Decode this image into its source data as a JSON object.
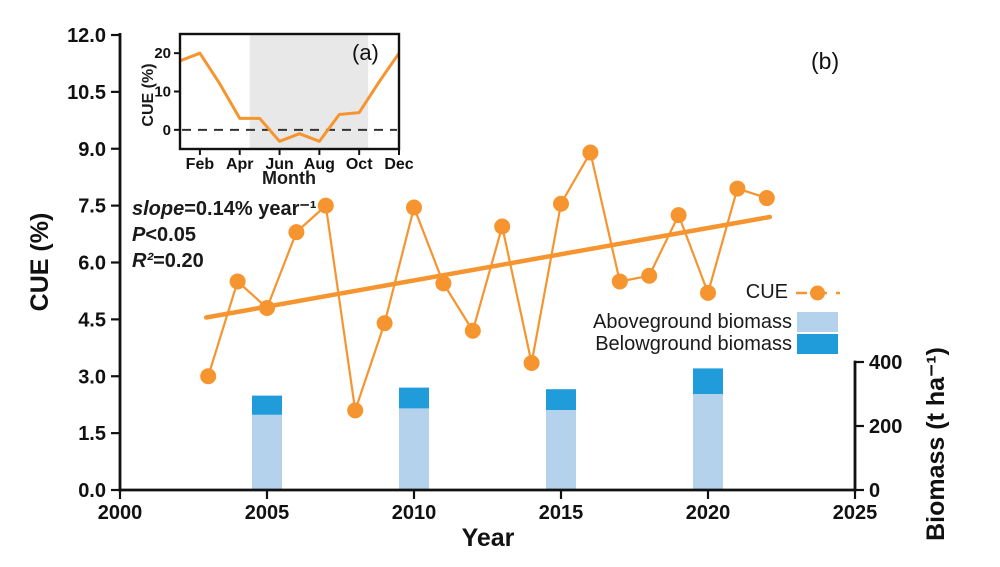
{
  "colors": {
    "orange": "#F6952F",
    "light_blue": "#B4D2EC",
    "dark_blue": "#219CDB",
    "band_gray": "#E8E8E8",
    "axis_black": "#111111"
  },
  "chart_data": [
    {
      "id": "inset-a",
      "type": "line",
      "title": "(a)",
      "xlabel": "Month",
      "ylabel": "CUE (%)",
      "x": [
        1,
        2,
        3,
        4,
        5,
        6,
        7,
        8,
        9,
        10,
        11,
        12
      ],
      "values": [
        18,
        20,
        12,
        3,
        3,
        -3,
        -1,
        -3,
        4,
        4.5,
        12.5,
        20
      ],
      "xlim": [
        1,
        12
      ],
      "ylim": [
        -5,
        25
      ],
      "yticks": [
        0,
        10,
        20
      ],
      "xticks": [
        2,
        4,
        6,
        8,
        10,
        12
      ],
      "xticklabels": [
        "Feb",
        "Apr",
        "Jun",
        "Aug",
        "Oct",
        "Dec"
      ],
      "shaded_month_range": [
        4.5,
        10.45
      ],
      "zero_line_dashed": true,
      "grid": false
    },
    {
      "id": "main-b",
      "type": "line+bar",
      "title": "(b)",
      "xlabel": "Year",
      "ylabel_left": "CUE (%)",
      "ylabel_right": "Biomass (t ha⁻¹)",
      "xlim": [
        2000,
        2025
      ],
      "xticks": [
        2000,
        2005,
        2010,
        2015,
        2020,
        2025
      ],
      "ylim_left": [
        0,
        12
      ],
      "yticks_left": [
        "0.0",
        "1.5",
        "3.0",
        "4.5",
        "6.0",
        "7.5",
        "9.0",
        "10.5",
        "12.0"
      ],
      "ylim_right": [
        0,
        400
      ],
      "yticks_right": [
        0,
        200,
        400
      ],
      "grid": false,
      "legend_position": "right-middle",
      "cue_series": {
        "name": "CUE",
        "years": [
          2003,
          2004,
          2005,
          2006,
          2007,
          2008,
          2009,
          2010,
          2011,
          2012,
          2013,
          2014,
          2015,
          2016,
          2017,
          2018,
          2019,
          2020,
          2021,
          2022
        ],
        "values": [
          3.0,
          5.5,
          4.8,
          6.8,
          7.5,
          2.1,
          4.4,
          7.45,
          5.45,
          4.2,
          6.95,
          3.35,
          7.55,
          8.9,
          5.5,
          5.65,
          7.25,
          5.2,
          7.95,
          7.7
        ]
      },
      "trend_line": {
        "x1": 2003,
        "y1": 4.55,
        "x2": 2022,
        "y2": 7.2
      },
      "bars": {
        "years": [
          2005,
          2010,
          2015,
          2020
        ],
        "series": [
          {
            "name": "Aboveground biomass",
            "values": [
              235,
              255,
              250,
              300
            ]
          },
          {
            "name": "Belowground biomass",
            "values": [
              60,
              65,
              65,
              80
            ]
          }
        ]
      },
      "legend": {
        "cue": "CUE",
        "aboveground": "Aboveground biomass",
        "belowground": "Belowground biomass"
      },
      "annotation": {
        "line1_italic": "slope",
        "line1_rest": "=0.14% year⁻¹",
        "line2_italic": "P",
        "line2_rest": "<0.05",
        "line3_italic": "R²",
        "line3_rest": "=0.20"
      }
    }
  ]
}
